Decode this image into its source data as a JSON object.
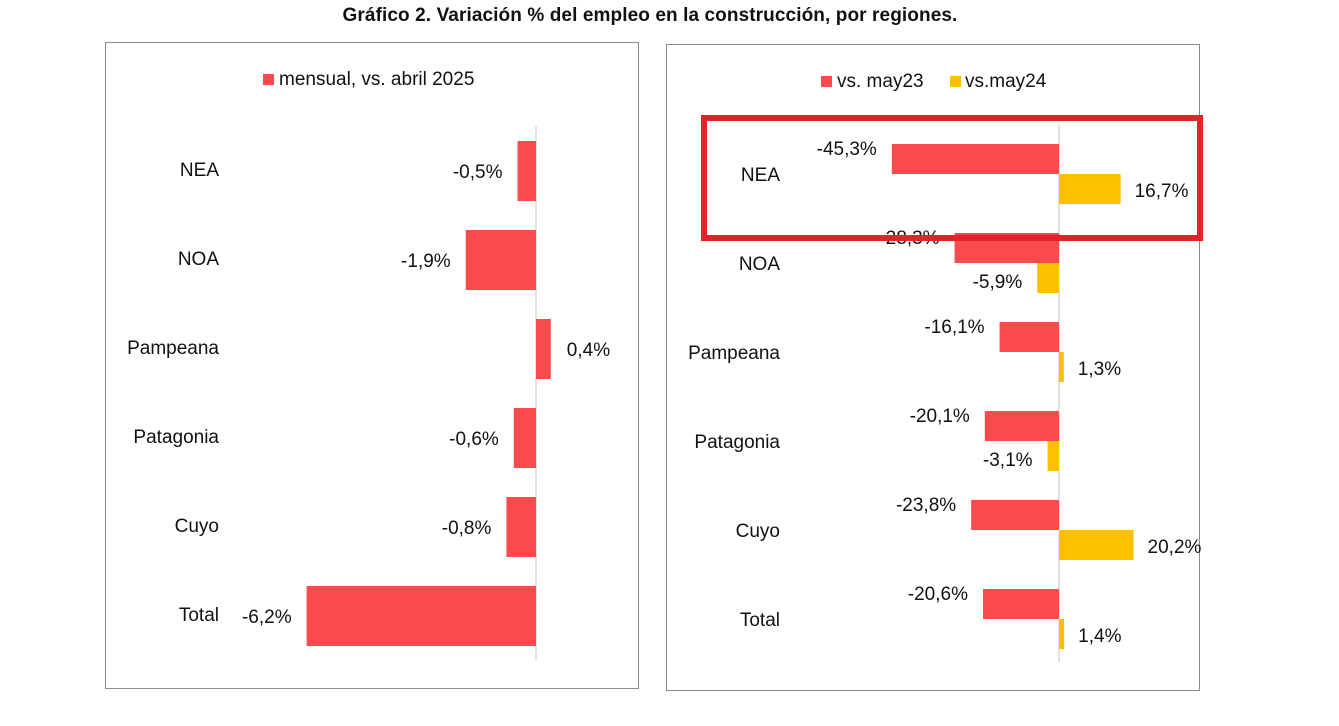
{
  "title": "Gráfico 2. Variación % del empleo en la construcción, por regiones.",
  "colors": {
    "red": "#f94a4c",
    "yellow": "#fdc000",
    "axis": "#d9d9d9",
    "highlight": "#e52129"
  },
  "chart_data": [
    {
      "type": "bar",
      "orientation": "horizontal",
      "categories": [
        "NEA",
        "NOA",
        "Pampeana",
        "Patagonia",
        "Cuyo",
        "Total"
      ],
      "series": [
        {
          "name": "mensual, vs. abril 2025",
          "values": [
            -0.5,
            -1.9,
            0.4,
            -0.6,
            -0.8,
            -6.2
          ],
          "labels": [
            "-0,5%",
            "-1,9%",
            "0,4%",
            "-0,6%",
            "-0,8%",
            "-6,2%"
          ]
        }
      ],
      "legend": "top"
    },
    {
      "type": "bar",
      "orientation": "horizontal",
      "categories": [
        "NEA",
        "NOA",
        "Pampeana",
        "Patagonia",
        "Cuyo",
        "Total"
      ],
      "series": [
        {
          "name": "vs. may23",
          "values": [
            -45.3,
            -28.3,
            -16.1,
            -20.1,
            -23.8,
            -20.6
          ],
          "labels": [
            "-45,3%",
            "-28,3%",
            "-16,1%",
            "-20,1%",
            "-23,8%",
            "-20,6%"
          ]
        },
        {
          "name": "vs.may24",
          "values": [
            16.7,
            -5.9,
            1.3,
            -3.1,
            20.2,
            1.4
          ],
          "labels": [
            "16,7%",
            "-5,9%",
            "1,3%",
            "-3,1%",
            "20,2%",
            "1,4%"
          ]
        }
      ],
      "legend": "top",
      "annotation": "NEA highlighted with red box"
    }
  ]
}
